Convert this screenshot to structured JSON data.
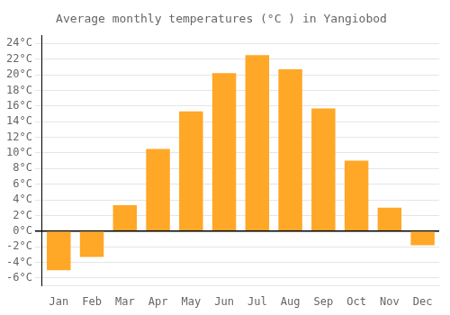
{
  "chart_data": {
    "type": "bar",
    "title": "Average monthly temperatures (°C ) in Yangiobod",
    "categories": [
      "Jan",
      "Feb",
      "Mar",
      "Apr",
      "May",
      "Jun",
      "Jul",
      "Aug",
      "Sep",
      "Oct",
      "Nov",
      "Dec"
    ],
    "values": [
      -5.0,
      -3.3,
      3.3,
      10.5,
      15.3,
      20.2,
      22.5,
      20.7,
      15.7,
      9.0,
      3.0,
      -1.8
    ],
    "color": "#FFA726",
    "ylim": [
      -7,
      25
    ],
    "yticks": [
      {
        "value": -6,
        "label": "-6°C"
      },
      {
        "value": -4,
        "label": "-4°C"
      },
      {
        "value": -2,
        "label": "-2°C"
      },
      {
        "value": 0,
        "label": "0°C"
      },
      {
        "value": 2,
        "label": "2°C"
      },
      {
        "value": 4,
        "label": "4°C"
      },
      {
        "value": 6,
        "label": "6°C"
      },
      {
        "value": 8,
        "label": "8°C"
      },
      {
        "value": 10,
        "label": "10°C"
      },
      {
        "value": 12,
        "label": "12°C"
      },
      {
        "value": 14,
        "label": "14°C"
      },
      {
        "value": 16,
        "label": "16°C"
      },
      {
        "value": 18,
        "label": "18°C"
      },
      {
        "value": 20,
        "label": "20°C"
      },
      {
        "value": 22,
        "label": "22°C"
      },
      {
        "value": 24,
        "label": "24°C"
      }
    ],
    "grid": true
  }
}
